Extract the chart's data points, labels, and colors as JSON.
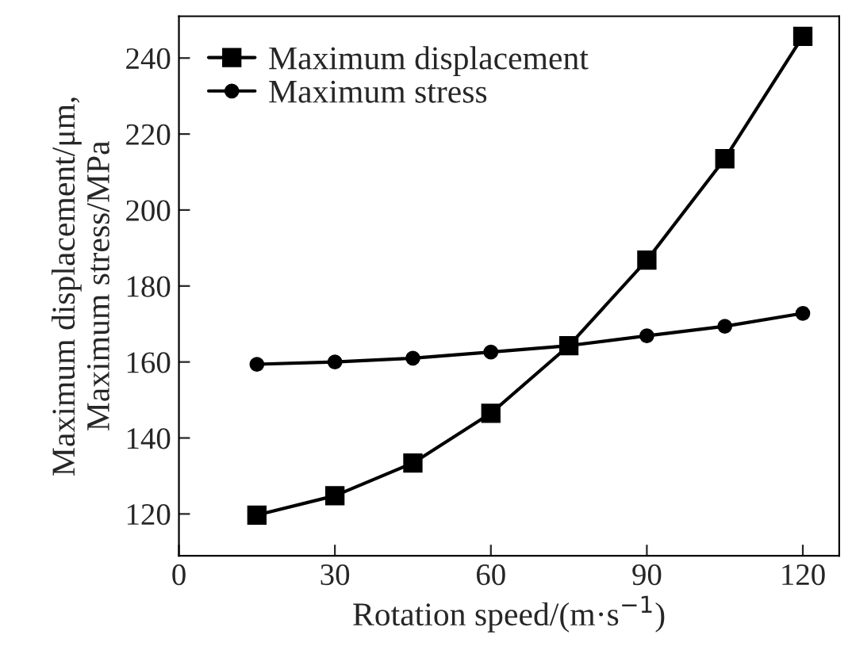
{
  "chart_data": {
    "type": "line",
    "xlabel": "Rotation speed/(m·s$^{−1}$)",
    "ylabel": "Maximum displacement/μm,\nMaximum stress/MPa",
    "x": [
      15,
      30,
      45,
      60,
      75,
      90,
      105,
      120
    ],
    "series": [
      {
        "name": "Maximum displacement",
        "color": "#000000",
        "marker": "square",
        "values": [
          119.7,
          124.8,
          133.4,
          146.5,
          164.3,
          186.8,
          213.5,
          245.7
        ]
      },
      {
        "name": "Maximum stress",
        "color": "#000000",
        "marker": "circle",
        "values": [
          159.4,
          160,
          161,
          162.6,
          164.3,
          166.9,
          169.4,
          172.8
        ]
      }
    ],
    "xlim": [
      0,
      127
    ],
    "xticks": [
      0,
      30,
      60,
      90,
      120
    ],
    "ylim": [
      109,
      251
    ],
    "yticks": [
      120,
      140,
      160,
      180,
      200,
      220,
      240
    ],
    "grid": false,
    "legend": "top left",
    "line_style": "solid"
  }
}
